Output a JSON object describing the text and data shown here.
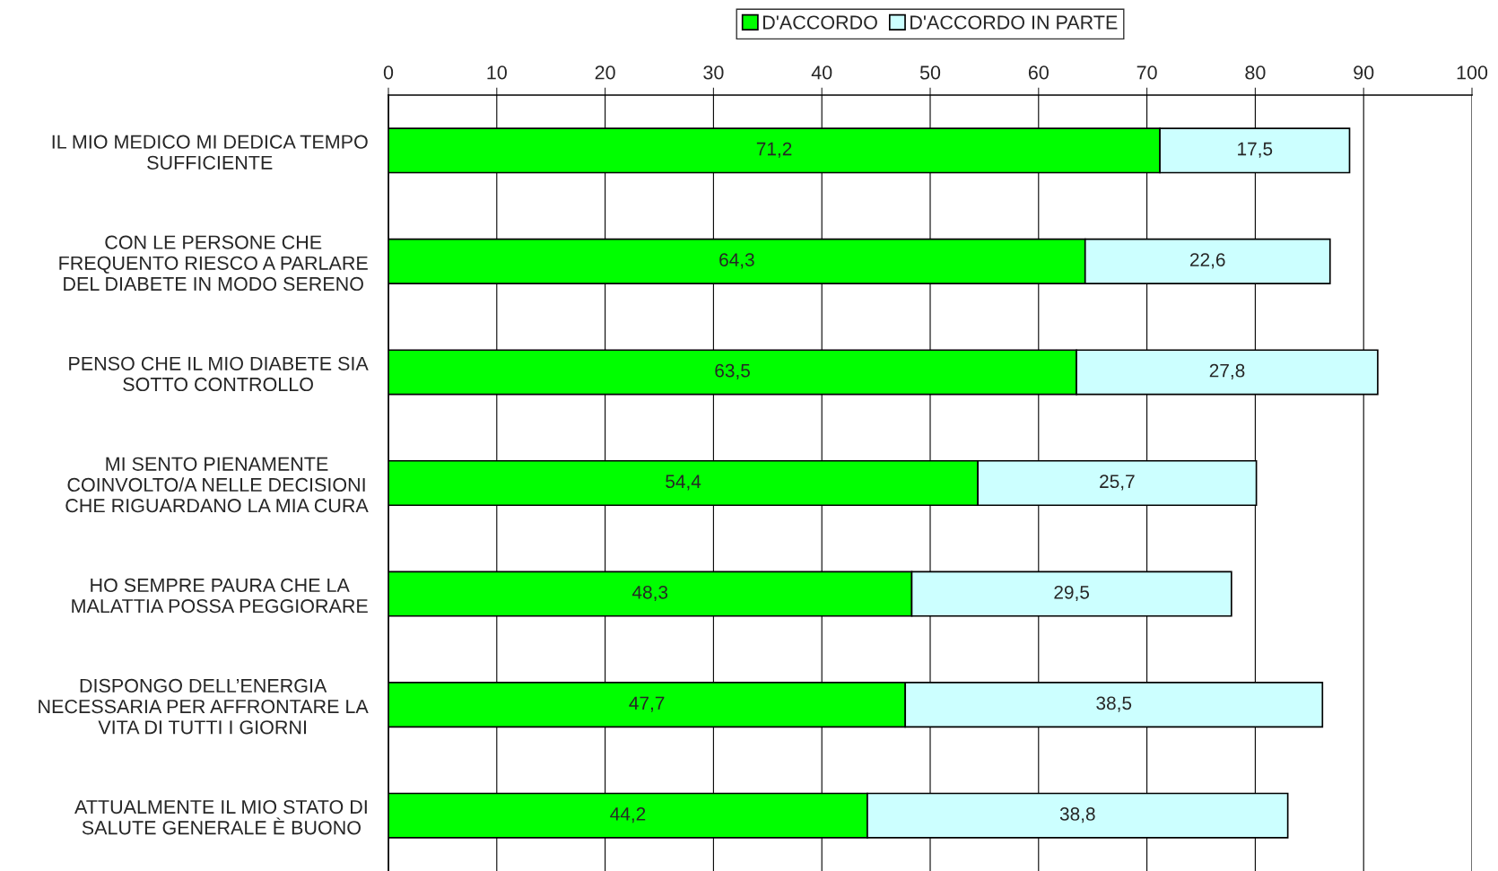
{
  "chart_data": {
    "type": "bar",
    "orientation": "horizontal",
    "stacked": true,
    "categories": [
      "IL MIO MEDICO MI DEDICA TEMPO\nSUFFICIENTE",
      "CON LE PERSONE CHE\nFREQUENTO RIESCO A PARLARE\nDEL DIABETE IN MODO SERENO",
      "PENSO CHE IL MIO DIABETE SIA\nSOTTO CONTROLLO",
      "MI SENTO PIENAMENTE\nCOINVOLTO/A NELLE DECISIONI\nCHE RIGUARDANO LA MIA CURA",
      "HO SEMPRE PAURA CHE LA\nMALATTIA POSSA PEGGIORARE",
      "DISPONGO DELL’ENERGIA\nNECESSARIA PER AFFRONTARE LA\nVITA DI TUTTI I GIORNI",
      "ATTUALMENTE IL MIO STATO DI\nSALUTE GENERALE È BUONO"
    ],
    "series": [
      {
        "name": "D'ACCORDO",
        "color": "#00ff00",
        "values": [
          71.2,
          64.3,
          63.5,
          54.4,
          48.3,
          47.7,
          44.2
        ],
        "value_labels": [
          "71,2",
          "64,3",
          "63,5",
          "54,4",
          "48,3",
          "47,7",
          "44,2"
        ]
      },
      {
        "name": "D'ACCORDO IN PARTE",
        "color": "#ccffff",
        "values": [
          17.5,
          22.6,
          27.8,
          25.7,
          29.5,
          38.5,
          38.8
        ],
        "value_labels": [
          "17,5",
          "22,6",
          "27,8",
          "25,7",
          "29,5",
          "38,5",
          "38,8"
        ]
      }
    ],
    "xlim": [
      0,
      100
    ],
    "xticks": [
      0,
      10,
      20,
      30,
      40,
      50,
      60,
      70,
      80,
      90,
      100
    ],
    "grid": "x",
    "legend": "top"
  }
}
